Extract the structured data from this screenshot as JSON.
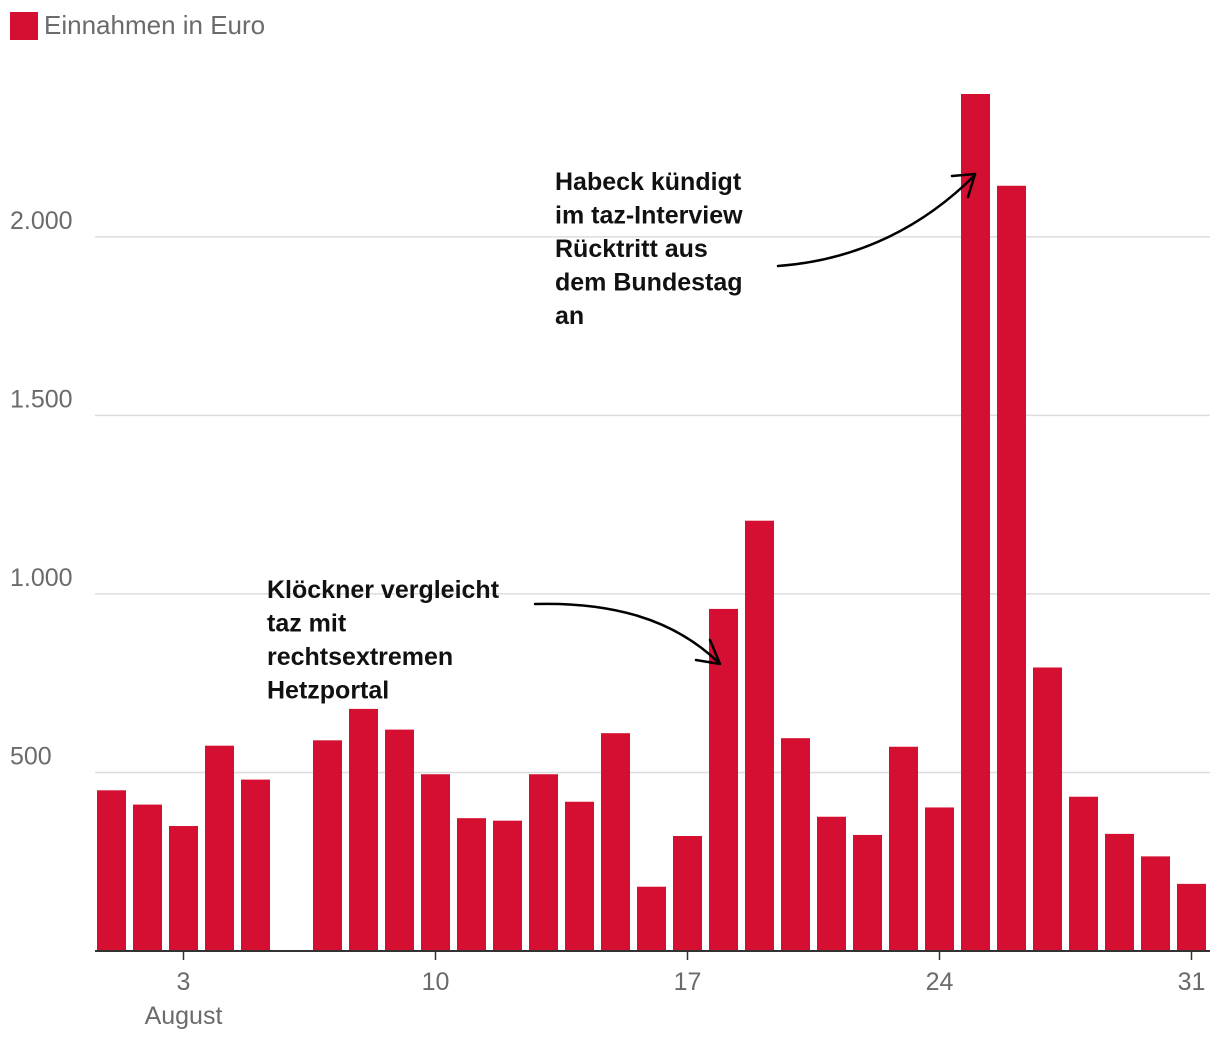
{
  "legend": {
    "label": "Einnahmen in Euro",
    "color": "#d50f31"
  },
  "chart_data": {
    "type": "bar",
    "title": "",
    "series": [
      {
        "name": "Einnahmen in Euro",
        "color": "#d50f31"
      }
    ],
    "days": [
      1,
      2,
      3,
      4,
      5,
      6,
      7,
      8,
      9,
      10,
      11,
      12,
      13,
      14,
      15,
      16,
      17,
      18,
      19,
      20,
      21,
      22,
      23,
      24,
      25,
      26,
      27,
      28,
      29,
      30,
      31
    ],
    "values": [
      450,
      410,
      350,
      575,
      480,
      0,
      590,
      678,
      620,
      495,
      372,
      365,
      495,
      418,
      610,
      180,
      322,
      958,
      1205,
      596,
      376,
      325,
      572,
      402,
      2400,
      2143,
      794,
      432,
      328,
      265,
      188
    ],
    "ylim": [
      0,
      2400
    ],
    "yticks": [
      {
        "value": 500,
        "label": "500"
      },
      {
        "value": 1000,
        "label": "1.000"
      },
      {
        "value": 1500,
        "label": "1.500"
      },
      {
        "value": 2000,
        "label": "2.000"
      }
    ],
    "xticks": [
      {
        "day": 3,
        "label": "3"
      },
      {
        "day": 10,
        "label": "10"
      },
      {
        "day": 17,
        "label": "17"
      },
      {
        "day": 24,
        "label": "24"
      },
      {
        "day": 31,
        "label": "31"
      }
    ],
    "xsublabel": {
      "day": 3,
      "label": "August"
    },
    "grid": true,
    "annotations": [
      {
        "target_day": 18,
        "lines": [
          "Klöckner vergleicht",
          "taz mit",
          "rechtsextremen",
          "Hetzportal"
        ]
      },
      {
        "target_day": 25,
        "lines": [
          "Habeck kündigt",
          "im taz-Interview",
          "Rücktritt aus",
          "dem Bundestag",
          "an"
        ]
      }
    ]
  }
}
